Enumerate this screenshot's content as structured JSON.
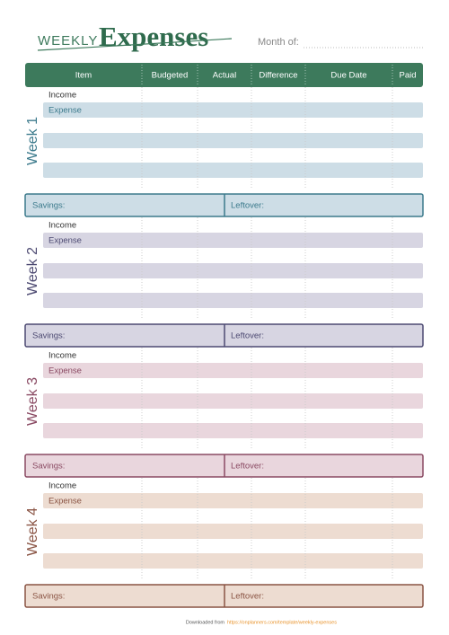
{
  "header": {
    "title_small": "WEEKLY",
    "title": "Expenses",
    "month_label": "Month of:"
  },
  "table": {
    "columns": [
      "Item",
      "Budgeted",
      "Actual",
      "Difference",
      "Due Date",
      "Paid"
    ]
  },
  "weeks": [
    {
      "label": "Week 1",
      "rows": [
        "Income",
        "Expense"
      ],
      "savings": "Savings:",
      "leftover": "Leftover:"
    },
    {
      "label": "Week 2",
      "rows": [
        "Income",
        "Expense"
      ],
      "savings": "Savings:",
      "leftover": "Leftover:"
    },
    {
      "label": "Week 3",
      "rows": [
        "Income",
        "Expense"
      ],
      "savings": "Savings:",
      "leftover": "Leftover:"
    },
    {
      "label": "Week 4",
      "rows": [
        "Income",
        "Expense"
      ],
      "savings": "Savings:",
      "leftover": "Leftover:"
    }
  ],
  "footer": {
    "text": "Downloaded from",
    "link": "https://onplanners.com/template/weekly-expenses"
  }
}
